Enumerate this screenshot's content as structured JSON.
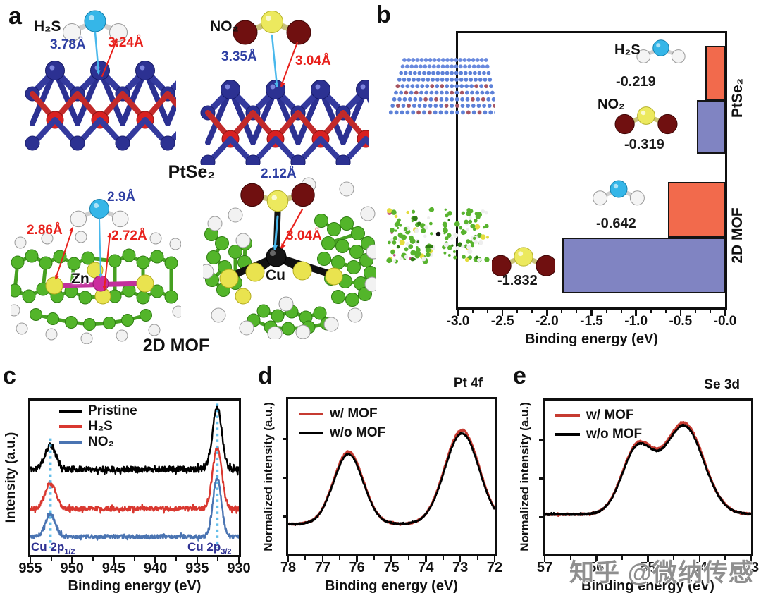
{
  "panel_letters": {
    "a": "a",
    "b": "b",
    "c": "c",
    "d": "d",
    "e": "e"
  },
  "panel_a": {
    "scenes": [
      {
        "name": "H2S on PtSe2",
        "molecule_label": "H₂S",
        "blue_distance": "3.78Å",
        "red_distance": "3.24Å"
      },
      {
        "name": "NO2 on PtSe2",
        "molecule_label": "NO₂",
        "blue_distance": "3.35Å",
        "red_distance": "3.04Å"
      },
      {
        "name": "H2S on 2D MOF",
        "blue_distance": "2.9Å",
        "red_distance_left": "2.86Å",
        "red_distance_right": "2.72Å",
        "metal_label": "Zn"
      },
      {
        "name": "NO2 on 2D MOF",
        "blue_distance": "2.12Å",
        "red_distance": "3.04Å",
        "metal_label": "Cu"
      }
    ],
    "caption_ptse2": "PtSe₂",
    "caption_mof": "2D MOF"
  },
  "watermark": "知乎 @微纳传感",
  "chart_data": [
    {
      "id": "b",
      "type": "bar",
      "orientation": "horizontal",
      "xlabel": "Binding energy (eV)",
      "xlim": [
        -3.0,
        0.0
      ],
      "xticks": [
        -3.0,
        -2.5,
        -2.0,
        -1.5,
        -1.0,
        -0.5,
        0.0
      ],
      "xtick_labels": [
        "-3.0",
        "-2.5",
        "-2.0",
        "-1.5",
        "-1.0",
        "-0.5",
        "-0.0"
      ],
      "row_labels": [
        "PtSe₂",
        "2D MOF"
      ],
      "bars": [
        {
          "row": "PtSe₂",
          "gas": "H₂S",
          "value": -0.219,
          "value_label": "-0.219",
          "color": "#f26a4c"
        },
        {
          "row": "PtSe₂",
          "gas": "NO₂",
          "value": -0.319,
          "value_label": "-0.319",
          "color": "#8084c2"
        },
        {
          "row": "2D MOF",
          "gas": "H₂S",
          "value": -0.642,
          "value_label": "-0.642",
          "color": "#f26a4c"
        },
        {
          "row": "2D MOF",
          "gas": "NO₂",
          "value": -1.832,
          "value_label": "-1.832",
          "color": "#8084c2"
        }
      ]
    },
    {
      "id": "c",
      "type": "line",
      "xlabel": "Binding energy (eV)",
      "ylabel": "Intensity (a.u.)",
      "x_range": [
        955,
        930
      ],
      "xticks": [
        955,
        950,
        945,
        940,
        935,
        930
      ],
      "legend": [
        {
          "label": "Pristine",
          "color": "#000000"
        },
        {
          "label": "H₂S",
          "color": "#d93830"
        },
        {
          "label": "NO₂",
          "color": "#4a74b2"
        }
      ],
      "annotations": [
        {
          "text": "Cu 2p",
          "sub": "1/2",
          "x": 952.6
        },
        {
          "text": "Cu 2p",
          "sub": "3/2",
          "x": 932.6
        }
      ],
      "guide_line_color": "#55b8e8",
      "guide_line_x": [
        952.6,
        932.6
      ],
      "series": [
        {
          "name": "Pristine",
          "color": "#000000",
          "baseline": 0.555,
          "noise": 0.019,
          "peaks": [
            {
              "center": 952.6,
              "amp": 0.155,
              "sigma": 0.65
            },
            {
              "center": 932.6,
              "amp": 0.4,
              "sigma": 0.55
            }
          ]
        },
        {
          "name": "H₂S",
          "color": "#d93830",
          "baseline": 0.3,
          "noise": 0.015,
          "peaks": [
            {
              "center": 952.6,
              "amp": 0.165,
              "sigma": 0.65
            },
            {
              "center": 932.6,
              "amp": 0.39,
              "sigma": 0.55
            }
          ]
        },
        {
          "name": "NO₂",
          "color": "#4a74b2",
          "baseline": 0.118,
          "noise": 0.013,
          "peaks": [
            {
              "center": 952.6,
              "amp": 0.145,
              "sigma": 0.6
            },
            {
              "center": 932.6,
              "amp": 0.385,
              "sigma": 0.5
            }
          ]
        }
      ]
    },
    {
      "id": "d",
      "type": "line",
      "title": "Pt 4f",
      "xlabel": "Binding energy (eV)",
      "ylabel": "Normalized intensity (a.u.)",
      "x_range": [
        78,
        72
      ],
      "xticks": [
        78,
        77,
        76,
        75,
        74,
        73,
        72
      ],
      "legend": [
        {
          "label": "w/ MOF",
          "color": "#c63b31"
        },
        {
          "label": "w/o MOF",
          "color": "#000000"
        }
      ],
      "series": [
        {
          "name": "w/ MOF",
          "color": "#c63b31",
          "baseline": 0.195,
          "noise": 0.004,
          "scale": 1.035,
          "peaks": [
            {
              "center": 76.25,
              "amp": 0.45,
              "sigma": 0.43
            },
            {
              "center": 72.95,
              "amp": 0.585,
              "sigma": 0.5
            }
          ]
        },
        {
          "name": "w/o MOF",
          "color": "#000000",
          "baseline": 0.195,
          "noise": 0.004,
          "scale": 1.0,
          "peaks": [
            {
              "center": 76.25,
              "amp": 0.45,
              "sigma": 0.43
            },
            {
              "center": 72.95,
              "amp": 0.585,
              "sigma": 0.5
            }
          ]
        }
      ]
    },
    {
      "id": "e",
      "type": "line",
      "title": "Se 3d",
      "xlabel": "Binding energy (eV)",
      "ylabel": "Normalized intensity (a.u.)",
      "x_range": [
        57,
        53
      ],
      "xticks": [
        57,
        56,
        55,
        54,
        53
      ],
      "legend": [
        {
          "label": "w/ MOF",
          "color": "#c63b31"
        },
        {
          "label": "w/o MOF",
          "color": "#000000"
        }
      ],
      "series": [
        {
          "name": "w/ MOF",
          "color": "#c63b31",
          "baseline": 0.26,
          "noise": 0.005,
          "scale": 1.03,
          "peaks": [
            {
              "center": 55.2,
              "amp": 0.42,
              "sigma": 0.3
            },
            {
              "center": 54.3,
              "amp": 0.573,
              "sigma": 0.38
            }
          ]
        },
        {
          "name": "w/o MOF",
          "color": "#000000",
          "baseline": 0.26,
          "noise": 0.005,
          "scale": 1.0,
          "peaks": [
            {
              "center": 55.2,
              "amp": 0.42,
              "sigma": 0.3
            },
            {
              "center": 54.3,
              "amp": 0.573,
              "sigma": 0.38
            }
          ]
        }
      ]
    }
  ]
}
